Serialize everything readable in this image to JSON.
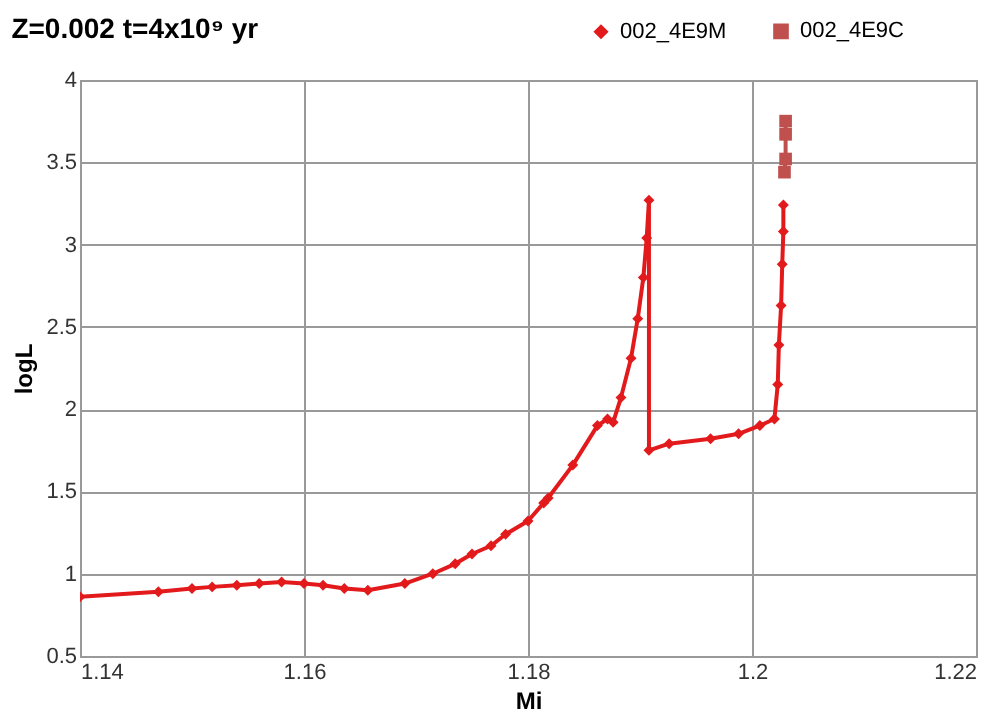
{
  "chart_data": {
    "type": "line",
    "title": "Z=0.002 t=4x10⁹ yr",
    "xlabel": "Mi",
    "ylabel": "logL",
    "xlim": [
      1.14,
      1.22
    ],
    "xticks": [
      1.14,
      1.16,
      1.18,
      {
        "value": 1.2,
        "label": "1.2"
      },
      1.22
    ],
    "ylim": [
      0.5,
      4
    ],
    "yticks": [
      0.5,
      1,
      1.5,
      2,
      2.5,
      3,
      3.5,
      4
    ],
    "grid": true,
    "legend": "top right",
    "line_style": "solid",
    "series": [
      {
        "name": "002_4E9M",
        "color": "#e31a1c",
        "marker": "diamond",
        "x": [
          1.14,
          1.147,
          1.15,
          1.1518,
          1.154,
          1.156,
          1.158,
          1.16,
          1.1617,
          1.1636,
          1.1657,
          1.169,
          1.1715,
          1.1735,
          1.175,
          1.1767,
          1.178,
          1.18,
          1.1814,
          1.1818,
          1.184,
          1.1862,
          1.1871,
          1.1876,
          1.1883,
          1.1892,
          1.1898,
          1.1903,
          1.1906,
          1.1908,
          1.1908,
          1.1926,
          1.1963,
          1.1988,
          1.2007,
          1.202,
          1.2023,
          1.2024,
          1.2026,
          1.2027,
          1.2028,
          1.2028
        ],
        "values": [
          0.86,
          0.89,
          0.91,
          0.92,
          0.93,
          0.94,
          0.95,
          0.94,
          0.93,
          0.91,
          0.9,
          0.94,
          1.0,
          1.06,
          1.12,
          1.17,
          1.24,
          1.32,
          1.43,
          1.46,
          1.66,
          1.9,
          1.94,
          1.92,
          2.07,
          2.31,
          2.55,
          2.8,
          3.04,
          3.27,
          1.75,
          1.79,
          1.82,
          1.85,
          1.9,
          1.94,
          2.15,
          2.39,
          2.63,
          2.88,
          3.08,
          3.24
        ]
      },
      {
        "name": "002_4E9C",
        "color": "#c0504d",
        "marker": "square",
        "x": [
          1.2029,
          1.203,
          1.203,
          1.203
        ],
        "values": [
          3.44,
          3.52,
          3.67,
          3.75
        ]
      }
    ]
  }
}
